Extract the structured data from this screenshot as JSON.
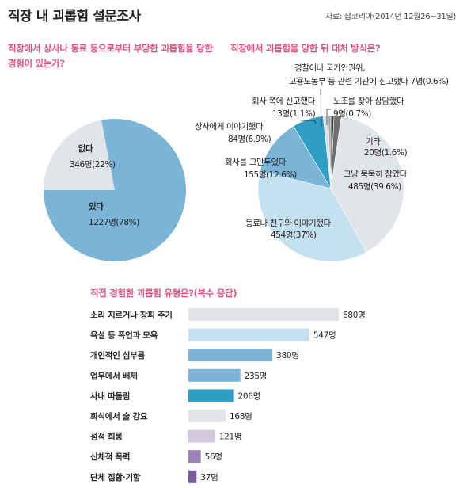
{
  "title": "직장 내 괴롭힘 설문조사",
  "source": "자료: 잡코리아(2014년 12월26~31일)",
  "q1": "직장에서 상사나 동료 등으로부터 부당한 괴롭힘을 당한 경험이 있는가?",
  "q2": "직장에서 괴롭힘을 당한 뒤 대처 방식은?",
  "q3": "직접 경험한 괴롭힘 유형은?(복수 응답)",
  "colors": {
    "accent": "#e0527e",
    "yes": "#7ab5d7",
    "no": "#e1e4e8",
    "endured": "#e1e4e8",
    "colleague": "#c5e0ee",
    "quit": "#7ab5d7",
    "superior": "#2f9ec5",
    "company": "#dbe0e6",
    "union": "#3a3a3a",
    "other": "#6e6e6e",
    "police": "#a8a8a8",
    "bar_blue_dark": "#2f9ec5",
    "bar_blue_mid": "#7ab5d7",
    "bar_blue_light": "#c5e0ee",
    "bar_gray": "#e1e4e8",
    "bar_purple_light": "#d4c8df",
    "bar_purple": "#9b82b8",
    "bar_purple_dark": "#7b5aa0"
  },
  "chart_data": [
    {
      "type": "pie",
      "slices": [
        {
          "name": "있다",
          "count": "1227명",
          "pct": "(78%)",
          "value": 78,
          "color_key": "yes"
        },
        {
          "name": "없다",
          "count": "346명",
          "pct": "(22%)",
          "value": 22,
          "color_key": "no"
        }
      ]
    },
    {
      "type": "pie",
      "slices": [
        {
          "name": "그냥 묵묵히 참았다",
          "value": 39.6,
          "label": "485명(39.6%)",
          "color_key": "endured"
        },
        {
          "name": "동료나 친구와 이야기했다",
          "value": 37,
          "label": "454명(37%)",
          "color_key": "colleague"
        },
        {
          "name": "회사를 그만두었다",
          "value": 12.6,
          "label": "155명(12.6%)",
          "color_key": "quit"
        },
        {
          "name": "상사에게 이야기했다",
          "value": 6.9,
          "label": "84명(6.9%)",
          "color_key": "superior"
        },
        {
          "name": "회사 쪽에 신고했다",
          "value": 1.1,
          "label": "13명(1.1%)",
          "color_key": "company"
        },
        {
          "name": "경찰이나 국가인권위, 고용노동부 등 관련 기관에 신고했다",
          "name_line1": "경찰이나 국가인권위,",
          "name_line2": "고용노동부 등 관련 기관에 신고했다",
          "value": 0.6,
          "label": "7명(0.6%)",
          "color_key": "police"
        },
        {
          "name": "노조를 찾아 상담했다",
          "value": 0.7,
          "label": "9명(0.7%)",
          "color_key": "union"
        },
        {
          "name": "기타",
          "value": 1.6,
          "label": "20명(1.6%)",
          "color_key": "other"
        }
      ]
    },
    {
      "type": "bar",
      "orientation": "horizontal",
      "categories": [
        "소리 지르거나 창피 주기",
        "욕설 등 폭언과 모욕",
        "개인적인 심부름",
        "업무에서 배제",
        "사내 따돌림",
        "회식에서 술 강요",
        "성적 희롱",
        "신체적 폭력",
        "단체 집합·기합"
      ],
      "values": [
        680,
        547,
        380,
        235,
        206,
        168,
        121,
        56,
        37
      ],
      "value_labels": [
        "680명",
        "547명",
        "380명",
        "235명",
        "206명",
        "168명",
        "121명",
        "56명",
        "37명"
      ],
      "color_keys": [
        "bar_gray",
        "bar_blue_light",
        "bar_blue_mid",
        "bar_blue_mid",
        "bar_blue_dark",
        "bar_gray",
        "bar_purple_light",
        "bar_purple",
        "bar_purple_dark"
      ]
    }
  ]
}
